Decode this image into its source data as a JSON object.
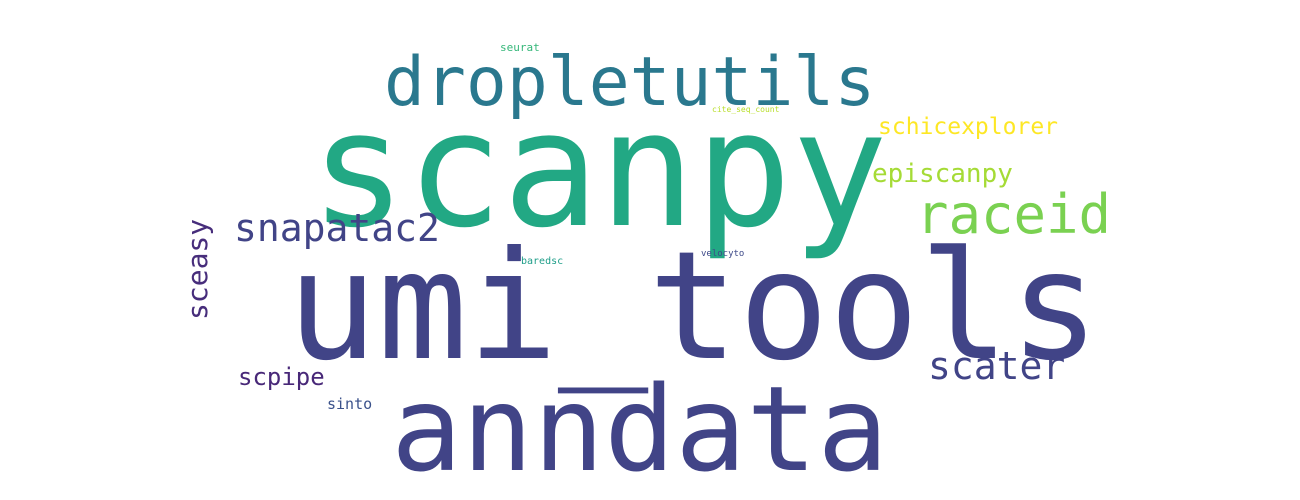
{
  "word_cloud": {
    "words": {
      "scanpy": "scanpy",
      "umi_tools": "umi_tools",
      "anndata": "anndata",
      "dropletutils": "dropletutils",
      "raceid": "raceid",
      "snapatac2": "snapatac2",
      "scater": "scater",
      "episcanpy": "episcanpy",
      "schicexplorer": "schicexplorer",
      "sceasy": "sceasy",
      "scpipe": "scpipe",
      "sinto": "sinto",
      "seurat": "seurat",
      "cite_seq_count": "cite_seq_count",
      "baredsc": "baredsc",
      "velocyto": "velocyto"
    },
    "colors": {
      "teal_green": "#22a884",
      "dark_blue": "#414487",
      "teal": "#2a788e",
      "light_green": "#7ad151",
      "lime": "#a5db36",
      "yellow": "#fde725",
      "purple": "#472d7b",
      "dark_purple": "#482878",
      "blue": "#3b528b",
      "green": "#35b779"
    }
  }
}
